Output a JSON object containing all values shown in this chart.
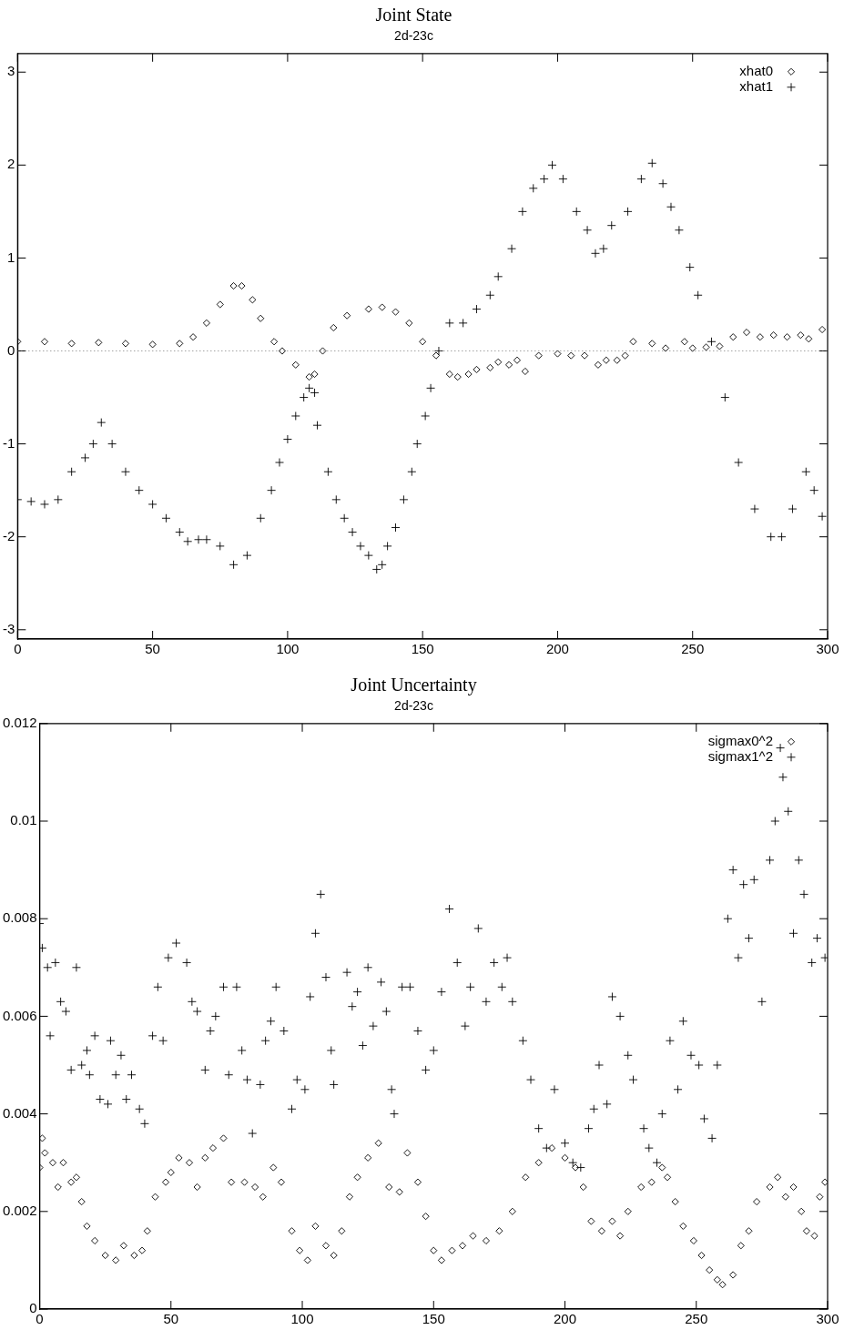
{
  "chart_data": [
    {
      "type": "scatter",
      "title": "Joint State",
      "subtitle": "2d-23c",
      "xlim": [
        0,
        300
      ],
      "xticks": [
        0,
        50,
        100,
        150,
        200,
        250,
        300
      ],
      "ylim": [
        -3.1,
        3.2
      ],
      "yticks": [
        -3,
        -2,
        -1,
        0,
        1,
        2,
        3
      ],
      "grid": false,
      "legend": "top right",
      "ref_lines": [
        {
          "axis": "y",
          "value": 0,
          "line_style": "dotted"
        }
      ],
      "series": [
        {
          "name": "xhat0",
          "color": "#000000",
          "marker": "diamond",
          "x": [
            0,
            10,
            20,
            30,
            40,
            50,
            60,
            65,
            70,
            75,
            80,
            83,
            87,
            90,
            95,
            98,
            103,
            108,
            110,
            113,
            117,
            122,
            130,
            135,
            140,
            145,
            150,
            155,
            160,
            163,
            167,
            170,
            175,
            178,
            182,
            185,
            188,
            193,
            200,
            205,
            210,
            215,
            218,
            222,
            225,
            228,
            235,
            240,
            247,
            250,
            255,
            260,
            265,
            270,
            275,
            280,
            285,
            290,
            293,
            298
          ],
          "values": [
            0.1,
            0.1,
            0.08,
            0.09,
            0.08,
            0.07,
            0.08,
            0.15,
            0.3,
            0.5,
            0.7,
            0.7,
            0.55,
            0.35,
            0.1,
            0,
            -0.15,
            -0.28,
            -0.25,
            0,
            0.25,
            0.38,
            0.45,
            0.47,
            0.42,
            0.3,
            0.1,
            -0.05,
            -0.25,
            -0.28,
            -0.25,
            -0.2,
            -0.18,
            -0.12,
            -0.15,
            -0.1,
            -0.22,
            -0.05,
            -0.03,
            -0.05,
            -0.05,
            -0.15,
            -0.1,
            -0.1,
            -0.05,
            0.1,
            0.08,
            0.03,
            0.1,
            0.03,
            0.04,
            0.05,
            0.15,
            0.2,
            0.15,
            0.17,
            0.15,
            0.17,
            0.13,
            0.23
          ]
        },
        {
          "name": "xhat1",
          "color": "#000000",
          "marker": "cross",
          "x": [
            0,
            5,
            10,
            15,
            20,
            25,
            28,
            31,
            35,
            40,
            45,
            50,
            55,
            60,
            63,
            67,
            70,
            75,
            80,
            85,
            90,
            94,
            97,
            100,
            103,
            106,
            108,
            110,
            111,
            115,
            118,
            121,
            124,
            127,
            130,
            133,
            135,
            137,
            140,
            143,
            146,
            148,
            151,
            153,
            156,
            160,
            165,
            170,
            175,
            178,
            183,
            187,
            191,
            195,
            198,
            202,
            207,
            211,
            214,
            217,
            220,
            226,
            231,
            235,
            239,
            242,
            245,
            249,
            252,
            257,
            262,
            267,
            273,
            279,
            283,
            287,
            292,
            295,
            298
          ],
          "values": [
            -1.6,
            -1.62,
            -1.65,
            -1.6,
            -1.3,
            -1.15,
            -1.0,
            -0.77,
            -1.0,
            -1.3,
            -1.5,
            -1.65,
            -1.8,
            -1.95,
            -2.05,
            -2.03,
            -2.03,
            -2.1,
            -2.3,
            -2.2,
            -1.8,
            -1.5,
            -1.2,
            -0.95,
            -0.7,
            -0.5,
            -0.4,
            -0.45,
            -0.8,
            -1.3,
            -1.6,
            -1.8,
            -1.95,
            -2.1,
            -2.2,
            -2.35,
            -2.3,
            -2.1,
            -1.9,
            -1.6,
            -1.3,
            -1.0,
            -0.7,
            -0.4,
            0,
            0.3,
            0.3,
            0.45,
            0.6,
            0.8,
            1.1,
            1.5,
            1.75,
            1.85,
            2.0,
            1.85,
            1.5,
            1.3,
            1.05,
            1.1,
            1.35,
            1.5,
            1.85,
            2.02,
            1.8,
            1.55,
            1.3,
            0.9,
            0.6,
            0.1,
            -0.5,
            -1.2,
            -1.7,
            -2.0,
            -2.0,
            -1.7,
            -1.3,
            -1.5,
            -1.78
          ]
        }
      ]
    },
    {
      "type": "scatter",
      "title": "Joint Uncertainty",
      "subtitle": "2d-23c",
      "xlim": [
        0,
        300
      ],
      "xticks": [
        0,
        50,
        100,
        150,
        200,
        250,
        300
      ],
      "ylim": [
        0,
        0.012
      ],
      "yticks": [
        0,
        0.002,
        0.004,
        0.006,
        0.008,
        0.01,
        0.012
      ],
      "grid": false,
      "legend": "top right",
      "series": [
        {
          "name": "sigmax0^2",
          "color": "#000000",
          "marker": "diamond",
          "x": [
            0,
            1,
            2,
            5,
            7,
            9,
            12,
            14,
            16,
            18,
            21,
            25,
            29,
            32,
            36,
            39,
            41,
            44,
            48,
            50,
            53,
            57,
            60,
            63,
            66,
            70,
            73,
            78,
            82,
            85,
            89,
            92,
            96,
            99,
            102,
            105,
            109,
            112,
            115,
            118,
            121,
            125,
            129,
            133,
            137,
            140,
            144,
            147,
            150,
            153,
            157,
            161,
            165,
            170,
            175,
            180,
            185,
            190,
            195,
            200,
            204,
            207,
            210,
            214,
            218,
            221,
            224,
            229,
            233,
            237,
            239,
            242,
            245,
            249,
            252,
            255,
            258,
            260,
            264,
            267,
            270,
            273,
            278,
            281,
            284,
            287,
            290,
            292,
            295,
            297,
            299
          ],
          "values": [
            0.0029,
            0.0035,
            0.0032,
            0.003,
            0.0025,
            0.003,
            0.0026,
            0.0027,
            0.0022,
            0.0017,
            0.0014,
            0.0011,
            0.001,
            0.0013,
            0.0011,
            0.0012,
            0.0016,
            0.0023,
            0.0026,
            0.0028,
            0.0031,
            0.003,
            0.0025,
            0.0031,
            0.0033,
            0.0035,
            0.0026,
            0.0026,
            0.0025,
            0.0023,
            0.0029,
            0.0026,
            0.0016,
            0.0012,
            0.001,
            0.0017,
            0.0013,
            0.0011,
            0.0016,
            0.0023,
            0.0027,
            0.0031,
            0.0034,
            0.0025,
            0.0024,
            0.0032,
            0.0026,
            0.0019,
            0.0012,
            0.001,
            0.0012,
            0.0013,
            0.0015,
            0.0014,
            0.0016,
            0.002,
            0.0027,
            0.003,
            0.0033,
            0.0031,
            0.0029,
            0.0025,
            0.0018,
            0.0016,
            0.0018,
            0.0015,
            0.002,
            0.0025,
            0.0026,
            0.0029,
            0.0027,
            0.0022,
            0.0017,
            0.0014,
            0.0011,
            0.0008,
            0.0006,
            0.0005,
            0.0007,
            0.0013,
            0.0016,
            0.0022,
            0.0025,
            0.0027,
            0.0023,
            0.0025,
            0.002,
            0.0016,
            0.0015,
            0.0023,
            0.0026
          ]
        },
        {
          "name": "sigmax1^2",
          "color": "#000000",
          "marker": "cross",
          "x": [
            0,
            1,
            3,
            4,
            6,
            8,
            10,
            12,
            14,
            16,
            18,
            19,
            21,
            23,
            26,
            27,
            29,
            31,
            33,
            35,
            38,
            40,
            43,
            45,
            47,
            49,
            52,
            56,
            58,
            60,
            63,
            65,
            67,
            70,
            72,
            75,
            77,
            79,
            81,
            84,
            86,
            88,
            90,
            93,
            96,
            98,
            101,
            103,
            105,
            107,
            109,
            111,
            112,
            117,
            119,
            121,
            123,
            125,
            127,
            130,
            132,
            134,
            135,
            138,
            141,
            144,
            147,
            150,
            153,
            156,
            159,
            162,
            164,
            167,
            170,
            173,
            176,
            178,
            180,
            184,
            187,
            190,
            193,
            196,
            200,
            203,
            206,
            209,
            211,
            213,
            216,
            218,
            221,
            224,
            226,
            230,
            232,
            235,
            237,
            240,
            243,
            245,
            248,
            251,
            253,
            256,
            258,
            262,
            264,
            266,
            268,
            270,
            272,
            275,
            278,
            280,
            282,
            283,
            285,
            287,
            289,
            291,
            294,
            296,
            299
          ],
          "values": [
            0.0079,
            0.0074,
            0.007,
            0.0056,
            0.0071,
            0.0063,
            0.0061,
            0.0049,
            0.007,
            0.005,
            0.0053,
            0.0048,
            0.0056,
            0.0043,
            0.0042,
            0.0055,
            0.0048,
            0.0052,
            0.0043,
            0.0048,
            0.0041,
            0.0038,
            0.0056,
            0.0066,
            0.0055,
            0.0072,
            0.0075,
            0.0071,
            0.0063,
            0.0061,
            0.0049,
            0.0057,
            0.006,
            0.0066,
            0.0048,
            0.0066,
            0.0053,
            0.0047,
            0.0036,
            0.0046,
            0.0055,
            0.0059,
            0.0066,
            0.0057,
            0.0041,
            0.0047,
            0.0045,
            0.0064,
            0.0077,
            0.0085,
            0.0068,
            0.0053,
            0.0046,
            0.0069,
            0.0062,
            0.0065,
            0.0054,
            0.007,
            0.0058,
            0.0067,
            0.0061,
            0.0045,
            0.004,
            0.0066,
            0.0066,
            0.0057,
            0.0049,
            0.0053,
            0.0065,
            0.0082,
            0.0071,
            0.0058,
            0.0066,
            0.0078,
            0.0063,
            0.0071,
            0.0066,
            0.0072,
            0.0063,
            0.0055,
            0.0047,
            0.0037,
            0.0033,
            0.0045,
            0.0034,
            0.003,
            0.0029,
            0.0037,
            0.0041,
            0.005,
            0.0042,
            0.0064,
            0.006,
            0.0052,
            0.0047,
            0.0037,
            0.0033,
            0.003,
            0.004,
            0.0055,
            0.0045,
            0.0059,
            0.0052,
            0.005,
            0.0039,
            0.0035,
            0.005,
            0.008,
            0.009,
            0.0072,
            0.0087,
            0.0076,
            0.0088,
            0.0063,
            0.0092,
            0.01,
            0.0115,
            0.0109,
            0.0102,
            0.0077,
            0.0092,
            0.0085,
            0.0071,
            0.0076,
            0.0072
          ]
        }
      ]
    }
  ]
}
